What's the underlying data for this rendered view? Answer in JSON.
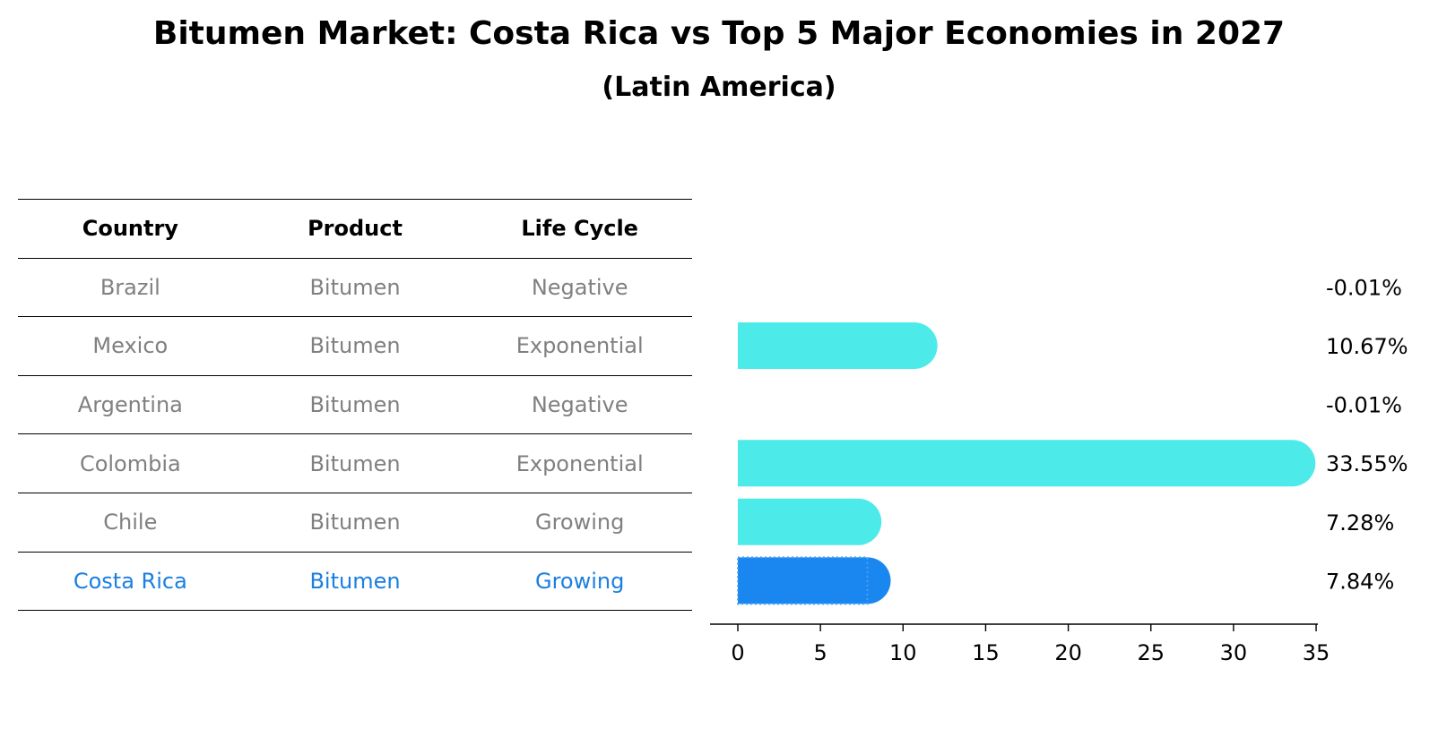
{
  "title": "Bitumen Market: Costa Rica vs Top 5 Major Economies in 2027",
  "subtitle": "(Latin America)",
  "table": {
    "headers": [
      "Country",
      "Product",
      "Life Cycle"
    ],
    "rows": [
      [
        "Brazil",
        "Bitumen",
        "Negative"
      ],
      [
        "Mexico",
        "Bitumen",
        "Exponential"
      ],
      [
        "Argentina",
        "Bitumen",
        "Negative"
      ],
      [
        "Colombia",
        "Bitumen",
        "Exponential"
      ],
      [
        "Chile",
        "Bitumen",
        "Growing"
      ],
      [
        "Costa Rica",
        "Bitumen",
        "Growing"
      ]
    ]
  },
  "chart_data": {
    "type": "bar",
    "orientation": "horizontal",
    "categories": [
      "Brazil",
      "Mexico",
      "Argentina",
      "Colombia",
      "Chile",
      "Costa Rica"
    ],
    "values": [
      -0.01,
      10.67,
      -0.01,
      33.55,
      7.28,
      7.84
    ],
    "value_labels": [
      "-0.01%",
      "10.67%",
      "-0.01%",
      "33.55%",
      "7.28%",
      "7.84%"
    ],
    "highlight": "Costa Rica",
    "xlim": [
      0,
      35
    ],
    "xticks": [
      0,
      5,
      10,
      15,
      20,
      25,
      30,
      35
    ],
    "xlabel": "",
    "ylabel": "",
    "colors": {
      "bar": "#4deaea",
      "highlight": "#1a86f0"
    }
  }
}
